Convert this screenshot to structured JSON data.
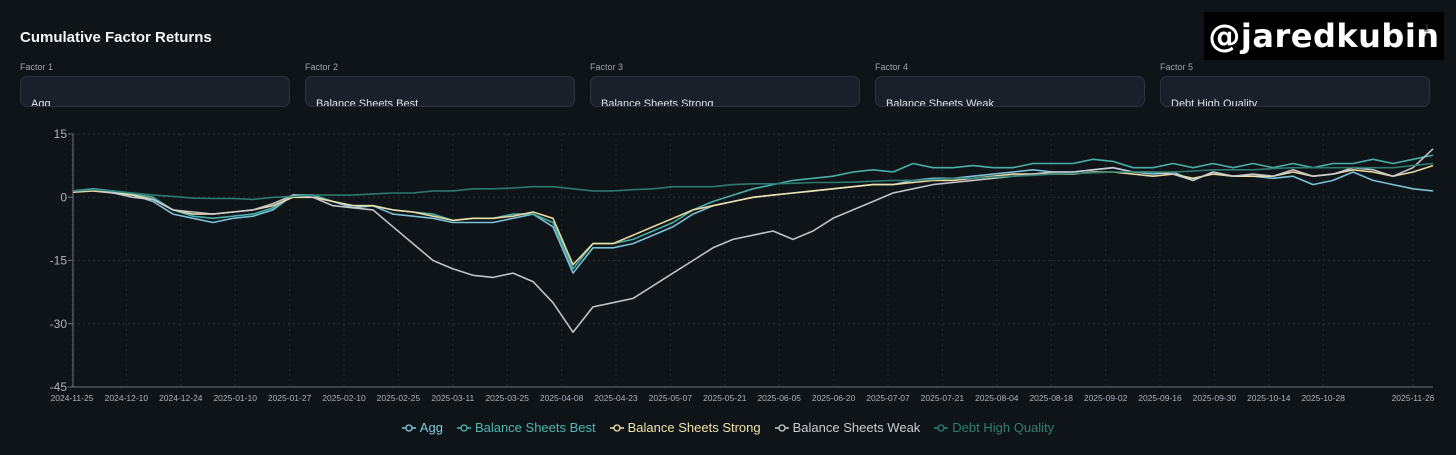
{
  "title": "Cumulative Factor Returns",
  "watermark": "@jaredkubin",
  "icons": {
    "download": "download-icon"
  },
  "factors": [
    {
      "label": "Factor 1",
      "value": "Agg"
    },
    {
      "label": "Factor 2",
      "value": "Balance Sheets Best"
    },
    {
      "label": "Factor 3",
      "value": "Balance Sheets Strong"
    },
    {
      "label": "Factor 4",
      "value": "Balance Sheets Weak"
    },
    {
      "label": "Factor 5",
      "value": "Debt High Quality"
    }
  ],
  "chart_data": {
    "type": "line",
    "ylim": [
      -45,
      15
    ],
    "yticks": [
      "15",
      "0",
      "-15",
      "-30",
      "-45"
    ],
    "grid": true,
    "legend_position": "bottom",
    "x_ticks": [
      "2024-11-25",
      "2024-12-10",
      "2024-12-24",
      "2025-01-10",
      "2025-01-27",
      "2025-02-10",
      "2025-02-25",
      "2025-03-11",
      "2025-03-25",
      "2025-04-08",
      "2025-04-23",
      "2025-05-07",
      "2025-05-21",
      "2025-06-05",
      "2025-06-20",
      "2025-07-07",
      "2025-07-21",
      "2025-08-04",
      "2025-08-18",
      "2025-09-02",
      "2025-09-16",
      "2025-09-30",
      "2025-10-14",
      "2025-10-28",
      "2025-11-26"
    ],
    "series": [
      {
        "name": "Agg",
        "color": "#7fcbe0",
        "values": [
          1.5,
          1.8,
          1.2,
          0.5,
          -1,
          -4,
          -5,
          -6,
          -5,
          -4.5,
          -3,
          0.5,
          0.5,
          -1,
          -2.5,
          -2,
          -4,
          -4.5,
          -5,
          -6,
          -6,
          -6,
          -5,
          -4,
          -7,
          -18,
          -12,
          -12,
          -11,
          -9,
          -7,
          -4,
          -2,
          -1,
          0,
          0.5,
          1,
          1.5,
          2,
          2.5,
          3,
          3,
          4,
          4.5,
          4.5,
          5,
          5.5,
          6,
          6.5,
          6,
          6,
          6.5,
          7,
          6,
          5.5,
          6,
          4,
          6,
          5,
          5,
          4.5,
          5,
          3,
          4,
          6,
          4,
          3,
          2,
          1.5
        ]
      },
      {
        "name": "Balance Sheets Best",
        "color": "#4cb8b0",
        "values": [
          1.5,
          2,
          1.5,
          0.8,
          0,
          -3,
          -4.5,
          -5,
          -4.5,
          -4,
          -2.5,
          0.5,
          0.5,
          -1,
          -2,
          -2,
          -3,
          -3.5,
          -4,
          -5.5,
          -5,
          -5,
          -4,
          -4,
          -6,
          -17,
          -11,
          -11,
          -10,
          -8,
          -6,
          -3,
          -1,
          0.5,
          2,
          3,
          4,
          4.5,
          5,
          6,
          6.5,
          6,
          8,
          7,
          7,
          7.5,
          7,
          7,
          8,
          8,
          8,
          9,
          8.5,
          7,
          7,
          8,
          7,
          8,
          7,
          8,
          7,
          8,
          7,
          8,
          8,
          9,
          8,
          9,
          10
        ]
      },
      {
        "name": "Balance Sheets Strong",
        "color": "#f3e2a9",
        "values": [
          1.2,
          1.5,
          1,
          0.5,
          -0.5,
          -3,
          -4,
          -4,
          -3.5,
          -3,
          -2,
          0,
          0,
          -1,
          -2,
          -2,
          -3,
          -3.5,
          -4.5,
          -5.5,
          -5,
          -5,
          -4.5,
          -3.5,
          -5,
          -16,
          -11,
          -11,
          -9,
          -7,
          -5,
          -3,
          -2,
          -1,
          0,
          0.5,
          1,
          1.5,
          2,
          2.5,
          3,
          3,
          3.5,
          4,
          4,
          4.5,
          5,
          5.5,
          5.5,
          5.5,
          5.5,
          6,
          6,
          5.5,
          5,
          5.5,
          4.5,
          5.5,
          5,
          5,
          5,
          6,
          5,
          5.5,
          6.5,
          6,
          5,
          6,
          7.5
        ]
      },
      {
        "name": "Balance Sheets Weak",
        "color": "#c9ccd1",
        "values": [
          1.5,
          1.8,
          1,
          0,
          -0.5,
          -3,
          -3.5,
          -4,
          -3.5,
          -3,
          -1.5,
          0.5,
          0,
          -2,
          -2.5,
          -3,
          -7,
          -11,
          -15,
          -17,
          -18.5,
          -19,
          -18,
          -20,
          -25,
          -32,
          -26,
          -25,
          -24,
          -21,
          -18,
          -15,
          -12,
          -10,
          -9,
          -8,
          -10,
          -8,
          -5,
          -3,
          -1,
          1,
          2,
          3,
          3.5,
          4,
          4.5,
          5,
          5.5,
          6,
          6,
          6.5,
          7,
          6,
          6,
          5.5,
          4,
          6,
          5,
          5.5,
          5,
          6.5,
          5,
          5.5,
          7,
          6.5,
          5,
          7,
          11.5
        ]
      },
      {
        "name": "Debt High Quality",
        "color": "#2f7f73",
        "values": [
          1.5,
          1.8,
          1.5,
          1,
          0.5,
          0.2,
          -0.2,
          -0.3,
          -0.3,
          -0.5,
          0,
          0.2,
          0.5,
          0.5,
          0.5,
          0.8,
          1,
          1,
          1.5,
          1.5,
          2,
          2,
          2.2,
          2.5,
          2.5,
          2,
          1.5,
          1.5,
          1.8,
          2,
          2.5,
          2.5,
          2.5,
          3,
          3.2,
          3.2,
          3.3,
          3.5,
          3.5,
          3.6,
          3.8,
          4,
          4,
          4.2,
          4.5,
          4.5,
          4.8,
          5,
          5.2,
          5.5,
          5.6,
          5.8,
          6,
          6,
          6,
          6,
          6.2,
          6.5,
          6.5,
          6.5,
          6.8,
          7,
          7,
          7,
          7,
          7,
          7,
          7.5,
          8
        ]
      }
    ]
  }
}
